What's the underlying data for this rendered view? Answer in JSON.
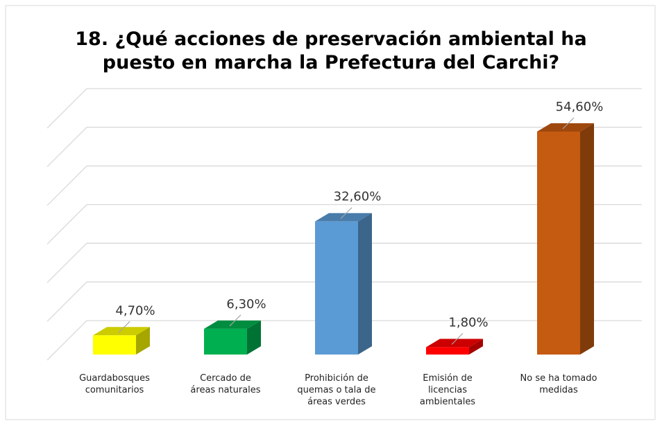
{
  "chart_data": {
    "type": "bar3d",
    "title": "18. ¿Qué acciones de preservación ambiental ha\npuesto en marcha la Prefectura del Carchi?",
    "categories": [
      "Guardabosques\ncomunitarios",
      "Cercado de\náreas naturales",
      "Prohibición de\nquemas o tala de\náreas verdes",
      "Emisión de\nlicencias\nambientales",
      "No se ha tomado\nmedidas"
    ],
    "values": [
      4.7,
      6.3,
      32.6,
      1.8,
      54.6
    ],
    "value_labels": [
      "4,70%",
      "6,30%",
      "32,60%",
      "1,80%",
      "54,60%"
    ],
    "colors": [
      "#ffff00",
      "#00b050",
      "#5b9bd5",
      "#ff0000",
      "#c55a11"
    ],
    "ylim": [
      0,
      60
    ],
    "yticks": [
      0,
      10,
      20,
      30,
      40,
      50,
      60
    ],
    "grid": true
  }
}
